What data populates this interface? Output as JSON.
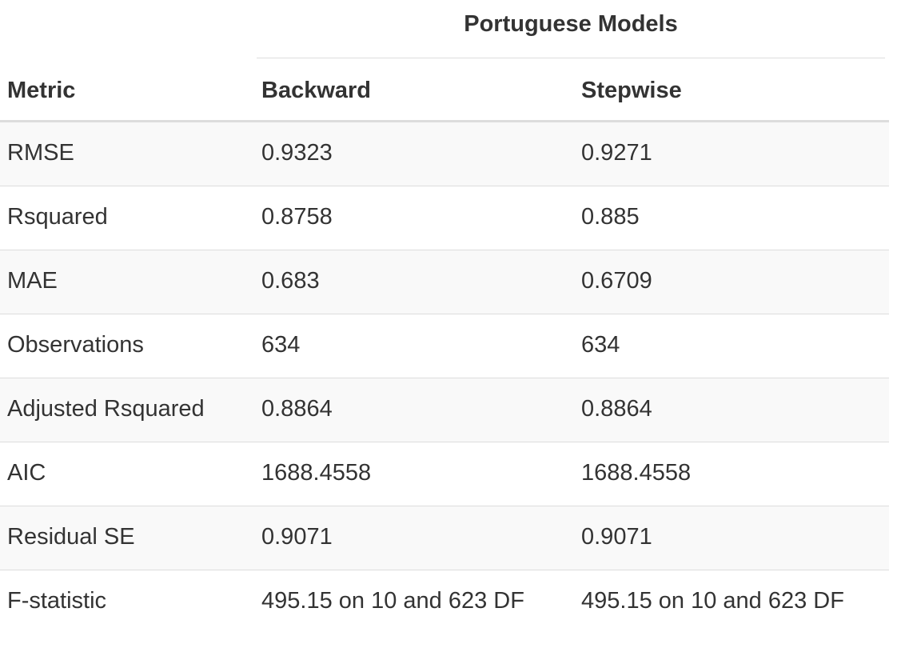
{
  "table": {
    "spanner": "Portuguese Models",
    "headers": [
      "Metric",
      "Backward",
      "Stepwise"
    ],
    "rows": [
      [
        "RMSE",
        "0.9323",
        "0.9271"
      ],
      [
        "Rsquared",
        "0.8758",
        "0.885"
      ],
      [
        "MAE",
        "0.683",
        "0.6709"
      ],
      [
        "Observations",
        "634",
        "634"
      ],
      [
        "Adjusted Rsquared",
        "0.8864",
        "0.8864"
      ],
      [
        "AIC",
        "1688.4558",
        "1688.4558"
      ],
      [
        "Residual SE",
        "0.9071",
        "0.9071"
      ],
      [
        "F-statistic",
        "495.15 on 10 and 623 DF",
        "495.15 on 10 and 623 DF"
      ]
    ]
  }
}
